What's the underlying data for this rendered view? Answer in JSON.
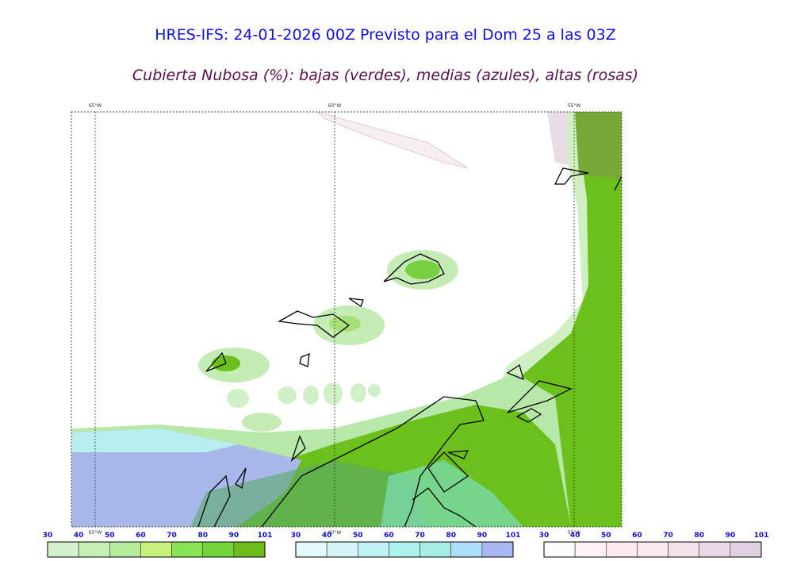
{
  "title": "HRES-IFS: 24-01-2026 00Z Previsto para el Dom 25 a las 03Z",
  "subtitle": "Cubierta Nubosa (%): bajas (verdes), medias (azules), altas (rosas)",
  "map": {
    "meridians": [
      "65°W",
      "60°W",
      "55°W"
    ]
  },
  "legends": [
    {
      "ticks": [
        30,
        40,
        50,
        60,
        70,
        80,
        90,
        101
      ],
      "colors": [
        "#d4f2cc",
        "#c4f0b4",
        "#b4ec9c",
        "#c8f07c",
        "#88e454",
        "#74d43c",
        "#6cbc1c"
      ]
    },
    {
      "ticks": [
        30,
        40,
        50,
        60,
        70,
        80,
        90,
        101
      ],
      "colors": [
        "#e4fafa",
        "#d4f6f8",
        "#c0f2f4",
        "#acf2ee",
        "#a4eee4",
        "#ace0f8",
        "#a8b8f0"
      ]
    },
    {
      "ticks": [
        30,
        40,
        50,
        60,
        70,
        80,
        90,
        101
      ],
      "colors": [
        "#fffafc",
        "#fff2f6",
        "#ffeaf0",
        "#faeaf0",
        "#f2e2ec",
        "#ead8e8",
        "#e0d0e2"
      ]
    }
  ]
}
